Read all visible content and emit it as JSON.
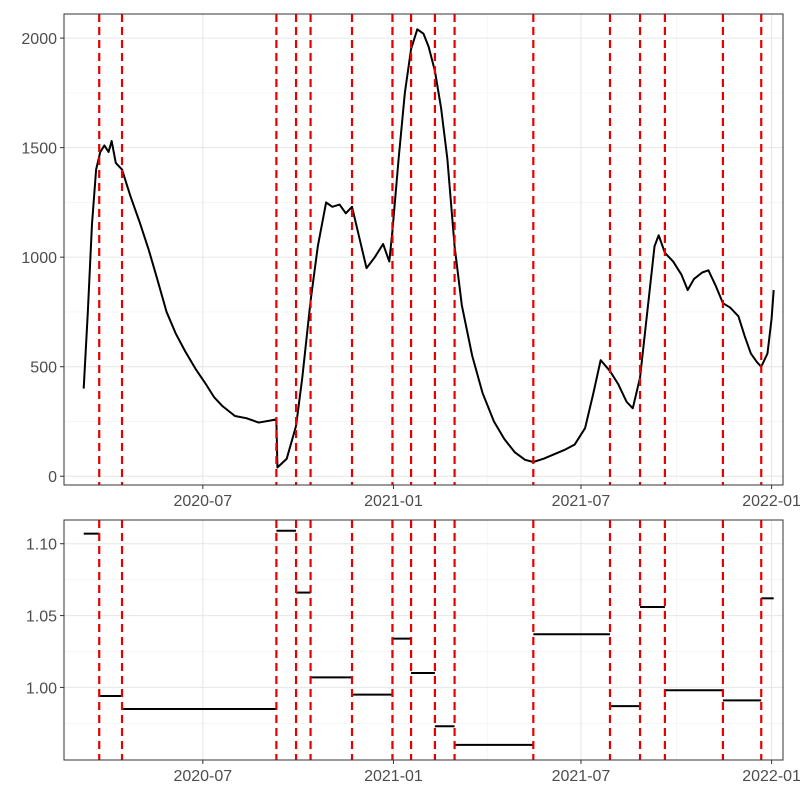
{
  "chart_data": [
    {
      "type": "line",
      "title": "",
      "xlabel": "",
      "ylabel": "",
      "x_tick_labels": [
        "2020-07",
        "2021-01",
        "2021-07",
        "2022-01"
      ],
      "y_tick_labels": [
        "0",
        "500",
        "1000",
        "1500",
        "2000"
      ],
      "ylim": [
        -40,
        2110
      ],
      "xlim": [
        "2020-02-18",
        "2022-01-12"
      ],
      "grid": true,
      "line_color": "#000000",
      "breakpoint_color": "#e60000",
      "breakpoints": [
        "2020-03-23",
        "2020-04-14",
        "2020-09-10",
        "2020-09-29",
        "2020-10-13",
        "2020-11-22",
        "2020-12-31",
        "2021-01-18",
        "2021-02-10",
        "2021-03-01",
        "2021-05-16",
        "2021-07-29",
        "2021-08-27",
        "2021-09-20",
        "2021-11-15",
        "2021-12-22"
      ],
      "series": [
        {
          "points": [
            [
              "2020-03-08",
              400
            ],
            [
              "2020-03-12",
              750
            ],
            [
              "2020-03-16",
              1150
            ],
            [
              "2020-03-20",
              1400
            ],
            [
              "2020-03-24",
              1480
            ],
            [
              "2020-03-28",
              1510
            ],
            [
              "2020-04-01",
              1480
            ],
            [
              "2020-04-04",
              1530
            ],
            [
              "2020-04-08",
              1430
            ],
            [
              "2020-04-14",
              1400
            ],
            [
              "2020-04-22",
              1280
            ],
            [
              "2020-05-01",
              1160
            ],
            [
              "2020-05-10",
              1030
            ],
            [
              "2020-05-18",
              900
            ],
            [
              "2020-05-27",
              750
            ],
            [
              "2020-06-05",
              650
            ],
            [
              "2020-06-14",
              570
            ],
            [
              "2020-06-24",
              490
            ],
            [
              "2020-07-04",
              420
            ],
            [
              "2020-07-12",
              360
            ],
            [
              "2020-07-20",
              320
            ],
            [
              "2020-08-01",
              275
            ],
            [
              "2020-08-12",
              265
            ],
            [
              "2020-08-24",
              245
            ],
            [
              "2020-09-05",
              255
            ],
            [
              "2020-09-10",
              260
            ],
            [
              "2020-09-11",
              40
            ],
            [
              "2020-09-20",
              80
            ],
            [
              "2020-09-29",
              230
            ],
            [
              "2020-10-05",
              450
            ],
            [
              "2020-10-13",
              800
            ],
            [
              "2020-10-20",
              1050
            ],
            [
              "2020-10-28",
              1250
            ],
            [
              "2020-11-03",
              1230
            ],
            [
              "2020-11-10",
              1240
            ],
            [
              "2020-11-16",
              1200
            ],
            [
              "2020-11-22",
              1230
            ],
            [
              "2020-11-30",
              1070
            ],
            [
              "2020-12-06",
              950
            ],
            [
              "2020-12-14",
              1000
            ],
            [
              "2020-12-22",
              1060
            ],
            [
              "2020-12-28",
              980
            ],
            [
              "2020-12-31",
              1120
            ],
            [
              "2021-01-06",
              1450
            ],
            [
              "2021-01-12",
              1750
            ],
            [
              "2021-01-18",
              1950
            ],
            [
              "2021-01-24",
              2040
            ],
            [
              "2021-01-30",
              2020
            ],
            [
              "2021-02-04",
              1960
            ],
            [
              "2021-02-10",
              1850
            ],
            [
              "2021-02-16",
              1680
            ],
            [
              "2021-02-22",
              1450
            ],
            [
              "2021-03-01",
              1050
            ],
            [
              "2021-03-08",
              780
            ],
            [
              "2021-03-18",
              550
            ],
            [
              "2021-03-28",
              380
            ],
            [
              "2021-04-08",
              250
            ],
            [
              "2021-04-18",
              170
            ],
            [
              "2021-04-28",
              110
            ],
            [
              "2021-05-08",
              75
            ],
            [
              "2021-05-16",
              65
            ],
            [
              "2021-05-26",
              80
            ],
            [
              "2021-06-05",
              100
            ],
            [
              "2021-06-15",
              120
            ],
            [
              "2021-06-25",
              145
            ],
            [
              "2021-07-05",
              220
            ],
            [
              "2021-07-13",
              380
            ],
            [
              "2021-07-20",
              530
            ],
            [
              "2021-07-29",
              480
            ],
            [
              "2021-08-06",
              420
            ],
            [
              "2021-08-14",
              340
            ],
            [
              "2021-08-20",
              310
            ],
            [
              "2021-08-27",
              450
            ],
            [
              "2021-09-03",
              750
            ],
            [
              "2021-09-10",
              1050
            ],
            [
              "2021-09-14",
              1100
            ],
            [
              "2021-09-20",
              1020
            ],
            [
              "2021-09-28",
              980
            ],
            [
              "2021-10-06",
              920
            ],
            [
              "2021-10-12",
              850
            ],
            [
              "2021-10-18",
              900
            ],
            [
              "2021-10-26",
              930
            ],
            [
              "2021-11-01",
              940
            ],
            [
              "2021-11-08",
              870
            ],
            [
              "2021-11-15",
              790
            ],
            [
              "2021-11-22",
              770
            ],
            [
              "2021-11-30",
              730
            ],
            [
              "2021-12-06",
              640
            ],
            [
              "2021-12-12",
              560
            ],
            [
              "2021-12-18",
              520
            ],
            [
              "2021-12-22",
              500
            ],
            [
              "2021-12-28",
              560
            ],
            [
              "2022-01-01",
              720
            ],
            [
              "2022-01-03",
              850
            ]
          ]
        }
      ]
    },
    {
      "type": "line",
      "title": "",
      "xlabel": "",
      "ylabel": "",
      "x_tick_labels": [
        "2020-07",
        "2021-01",
        "2021-07",
        "2022-01"
      ],
      "y_tick_labels": [
        "1.00",
        "1.05",
        "1.10"
      ],
      "ylim": [
        0.9495,
        1.1165
      ],
      "xlim": [
        "2020-02-18",
        "2022-01-12"
      ],
      "grid": true,
      "line_color": "#000000",
      "breakpoint_color": "#e60000",
      "breakpoints": [
        "2020-03-23",
        "2020-04-14",
        "2020-09-10",
        "2020-09-29",
        "2020-10-13",
        "2020-11-22",
        "2020-12-31",
        "2021-01-18",
        "2021-02-10",
        "2021-03-01",
        "2021-05-16",
        "2021-07-29",
        "2021-08-27",
        "2021-09-20",
        "2021-11-15",
        "2021-12-22"
      ],
      "segments": [
        {
          "start": "2020-03-08",
          "end": "2020-03-23",
          "value": 1.107
        },
        {
          "start": "2020-03-23",
          "end": "2020-04-14",
          "value": 0.994
        },
        {
          "start": "2020-04-14",
          "end": "2020-09-10",
          "value": 0.985
        },
        {
          "start": "2020-09-10",
          "end": "2020-09-29",
          "value": 1.109
        },
        {
          "start": "2020-09-29",
          "end": "2020-10-13",
          "value": 1.066
        },
        {
          "start": "2020-10-13",
          "end": "2020-11-22",
          "value": 1.007
        },
        {
          "start": "2020-11-22",
          "end": "2020-12-31",
          "value": 0.995
        },
        {
          "start": "2020-12-31",
          "end": "2021-01-18",
          "value": 1.034
        },
        {
          "start": "2021-01-18",
          "end": "2021-02-10",
          "value": 1.01
        },
        {
          "start": "2021-02-10",
          "end": "2021-03-01",
          "value": 0.973
        },
        {
          "start": "2021-03-01",
          "end": "2021-05-16",
          "value": 0.96
        },
        {
          "start": "2021-05-16",
          "end": "2021-07-29",
          "value": 1.037
        },
        {
          "start": "2021-07-29",
          "end": "2021-08-27",
          "value": 0.987
        },
        {
          "start": "2021-08-27",
          "end": "2021-09-20",
          "value": 1.056
        },
        {
          "start": "2021-09-20",
          "end": "2021-11-15",
          "value": 0.998
        },
        {
          "start": "2021-11-15",
          "end": "2021-12-22",
          "value": 0.991
        },
        {
          "start": "2021-12-22",
          "end": "2022-01-03",
          "value": 1.062
        }
      ]
    }
  ]
}
